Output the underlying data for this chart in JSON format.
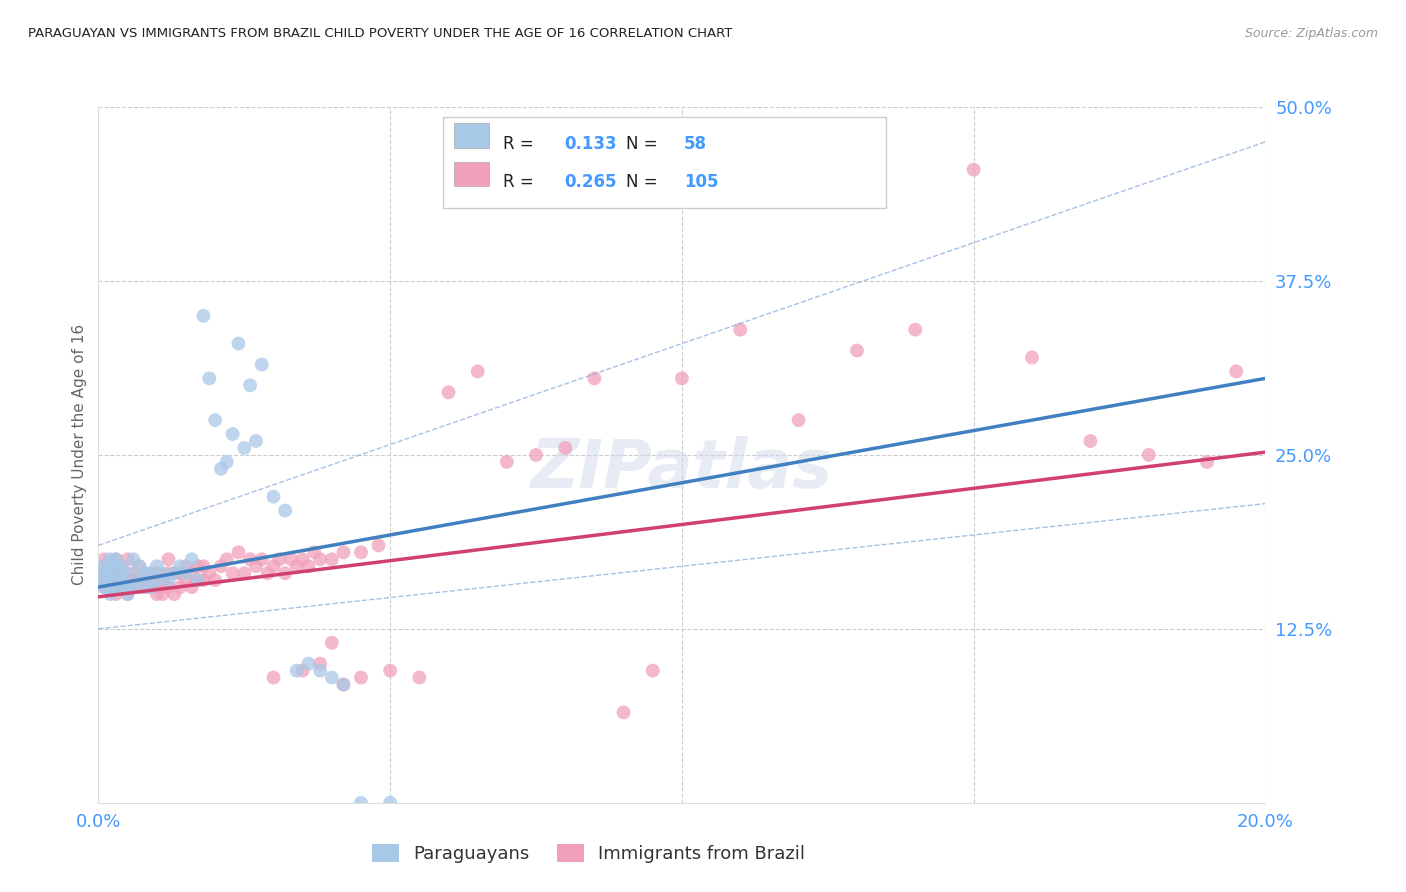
{
  "title": "PARAGUAYAN VS IMMIGRANTS FROM BRAZIL CHILD POVERTY UNDER THE AGE OF 16 CORRELATION CHART",
  "source": "Source: ZipAtlas.com",
  "ylabel_label": "Child Poverty Under the Age of 16",
  "legend_label1": "Paraguayans",
  "legend_label2": "Immigrants from Brazil",
  "r1": "0.133",
  "n1": "58",
  "r2": "0.265",
  "n2": "105",
  "color_blue": "#a8c8e8",
  "color_pink": "#f0a0b8",
  "color_blue_line": "#4080c0",
  "color_pink_line": "#d04070",
  "color_blue_dash": "#80a8d8",
  "color_axis_labels": "#4499ff",
  "background": "#ffffff",
  "x_min": 0.0,
  "x_max": 0.2,
  "y_min": 0.0,
  "y_max": 0.5,
  "paraguayan_x": [
    0.001,
    0.001,
    0.001,
    0.001,
    0.002,
    0.002,
    0.002,
    0.002,
    0.002,
    0.003,
    0.003,
    0.003,
    0.003,
    0.003,
    0.004,
    0.004,
    0.004,
    0.004,
    0.005,
    0.005,
    0.005,
    0.006,
    0.006,
    0.007,
    0.007,
    0.008,
    0.008,
    0.009,
    0.009,
    0.01,
    0.01,
    0.011,
    0.012,
    0.013,
    0.014,
    0.015,
    0.016,
    0.017,
    0.018,
    0.019,
    0.02,
    0.021,
    0.022,
    0.023,
    0.024,
    0.025,
    0.026,
    0.027,
    0.028,
    0.03,
    0.032,
    0.034,
    0.036,
    0.038,
    0.04,
    0.042,
    0.045,
    0.05
  ],
  "paraguayan_y": [
    0.155,
    0.16,
    0.165,
    0.17,
    0.15,
    0.155,
    0.165,
    0.17,
    0.175,
    0.155,
    0.16,
    0.165,
    0.17,
    0.175,
    0.155,
    0.16,
    0.165,
    0.17,
    0.15,
    0.155,
    0.165,
    0.155,
    0.175,
    0.16,
    0.17,
    0.155,
    0.165,
    0.155,
    0.165,
    0.16,
    0.17,
    0.165,
    0.16,
    0.165,
    0.17,
    0.165,
    0.175,
    0.16,
    0.35,
    0.305,
    0.275,
    0.24,
    0.245,
    0.265,
    0.33,
    0.255,
    0.3,
    0.26,
    0.315,
    0.22,
    0.21,
    0.095,
    0.1,
    0.095,
    0.09,
    0.085,
    0.0,
    0.0
  ],
  "brazil_x": [
    0.001,
    0.001,
    0.001,
    0.001,
    0.001,
    0.002,
    0.002,
    0.002,
    0.002,
    0.003,
    0.003,
    0.003,
    0.003,
    0.003,
    0.003,
    0.004,
    0.004,
    0.004,
    0.004,
    0.005,
    0.005,
    0.005,
    0.005,
    0.006,
    0.006,
    0.006,
    0.007,
    0.007,
    0.007,
    0.008,
    0.008,
    0.008,
    0.009,
    0.009,
    0.01,
    0.01,
    0.01,
    0.011,
    0.011,
    0.012,
    0.012,
    0.012,
    0.013,
    0.013,
    0.014,
    0.014,
    0.015,
    0.015,
    0.016,
    0.016,
    0.017,
    0.017,
    0.018,
    0.018,
    0.019,
    0.02,
    0.021,
    0.022,
    0.023,
    0.024,
    0.025,
    0.026,
    0.027,
    0.028,
    0.029,
    0.03,
    0.031,
    0.032,
    0.033,
    0.034,
    0.035,
    0.036,
    0.037,
    0.038,
    0.04,
    0.042,
    0.045,
    0.048,
    0.05,
    0.055,
    0.06,
    0.065,
    0.07,
    0.075,
    0.08,
    0.085,
    0.09,
    0.095,
    0.1,
    0.11,
    0.12,
    0.13,
    0.14,
    0.15,
    0.16,
    0.17,
    0.18,
    0.19,
    0.195,
    0.03,
    0.035,
    0.038,
    0.04,
    0.042,
    0.045
  ],
  "brazil_y": [
    0.155,
    0.16,
    0.165,
    0.17,
    0.175,
    0.155,
    0.16,
    0.165,
    0.17,
    0.15,
    0.155,
    0.16,
    0.165,
    0.17,
    0.175,
    0.155,
    0.16,
    0.165,
    0.17,
    0.15,
    0.155,
    0.16,
    0.175,
    0.155,
    0.16,
    0.165,
    0.155,
    0.16,
    0.17,
    0.155,
    0.16,
    0.165,
    0.155,
    0.16,
    0.15,
    0.155,
    0.165,
    0.15,
    0.16,
    0.155,
    0.165,
    0.175,
    0.15,
    0.165,
    0.155,
    0.165,
    0.16,
    0.17,
    0.155,
    0.165,
    0.16,
    0.17,
    0.16,
    0.17,
    0.165,
    0.16,
    0.17,
    0.175,
    0.165,
    0.18,
    0.165,
    0.175,
    0.17,
    0.175,
    0.165,
    0.17,
    0.175,
    0.165,
    0.175,
    0.17,
    0.175,
    0.17,
    0.18,
    0.175,
    0.175,
    0.18,
    0.18,
    0.185,
    0.095,
    0.09,
    0.295,
    0.31,
    0.245,
    0.25,
    0.255,
    0.305,
    0.065,
    0.095,
    0.305,
    0.34,
    0.275,
    0.325,
    0.34,
    0.455,
    0.32,
    0.26,
    0.25,
    0.245,
    0.31,
    0.09,
    0.095,
    0.1,
    0.115,
    0.085,
    0.09
  ]
}
